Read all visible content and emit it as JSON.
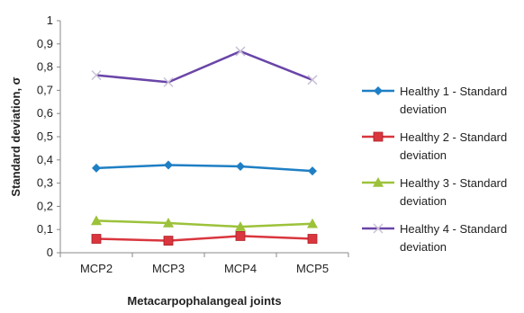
{
  "chart_data": {
    "type": "line",
    "xlabel": "Metacarpophalangeal joints",
    "ylabel": "Standard deviation, σ",
    "categories": [
      "MCP2",
      "MCP3",
      "MCP4",
      "MCP5"
    ],
    "ylim": [
      0,
      1
    ],
    "yticks": [
      "0",
      "0,1",
      "0,2",
      "0,3",
      "0,4",
      "0,5",
      "0,6",
      "0,7",
      "0,8",
      "0,9",
      "1"
    ],
    "grid": false,
    "legend_position": "right",
    "series": [
      {
        "name_line1": "Healthy 1 - Standard",
        "name_line2": "deviation",
        "color": "#1f7fc4",
        "marker": "diamond",
        "values": [
          0.365,
          0.378,
          0.372,
          0.352
        ]
      },
      {
        "name_line1": "Healthy 2 - Standard",
        "name_line2": "deviation",
        "color": "#d9363e",
        "marker": "square",
        "values": [
          0.06,
          0.052,
          0.072,
          0.06
        ]
      },
      {
        "name_line1": "Healthy 3 - Standard",
        "name_line2": "deviation",
        "color": "#9cc23a",
        "marker": "triangle",
        "values": [
          0.138,
          0.128,
          0.112,
          0.125
        ]
      },
      {
        "name_line1": "Healthy 4 - Standard",
        "name_line2": "deviation",
        "color": "#6a45a8",
        "marker": "x",
        "values": [
          0.765,
          0.735,
          0.868,
          0.745
        ]
      }
    ]
  }
}
